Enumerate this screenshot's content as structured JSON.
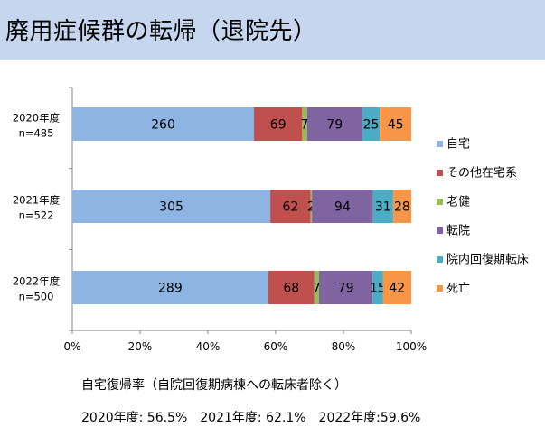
{
  "title": "廃用症候群の転帰（退院先）",
  "chart_data": {
    "type": "bar",
    "orientation": "horizontal",
    "stacking": "percent",
    "categories": [
      "2020年度\nn=485",
      "2021年度\nn=522",
      "2022年度\nn=500"
    ],
    "series": [
      {
        "name": "自宅",
        "values": [
          260,
          305,
          289
        ],
        "color": "#8eb4e3"
      },
      {
        "name": "その他在宅系",
        "values": [
          69,
          62,
          68
        ],
        "color": "#c0504d"
      },
      {
        "name": "老健",
        "values": [
          7,
          2,
          7
        ],
        "color": "#9bbb59"
      },
      {
        "name": "転院",
        "values": [
          79,
          94,
          79
        ],
        "color": "#8064a2"
      },
      {
        "name": "院内回復期転床",
        "values": [
          25,
          31,
          15
        ],
        "color": "#4bacc6"
      },
      {
        "name": "死亡",
        "values": [
          45,
          28,
          42
        ],
        "color": "#f79646"
      }
    ],
    "x_ticks": [
      "0%",
      "20%",
      "40%",
      "60%",
      "80%",
      "100%"
    ],
    "xlim": [
      0,
      100
    ],
    "legend": "right",
    "grid": false
  },
  "notes": {
    "line1": "自宅復帰率（自院回復期病棟への転床者除く）",
    "line2": "2020年度: 56.5%　2021年度: 62.1%　2022年度:59.6%"
  }
}
